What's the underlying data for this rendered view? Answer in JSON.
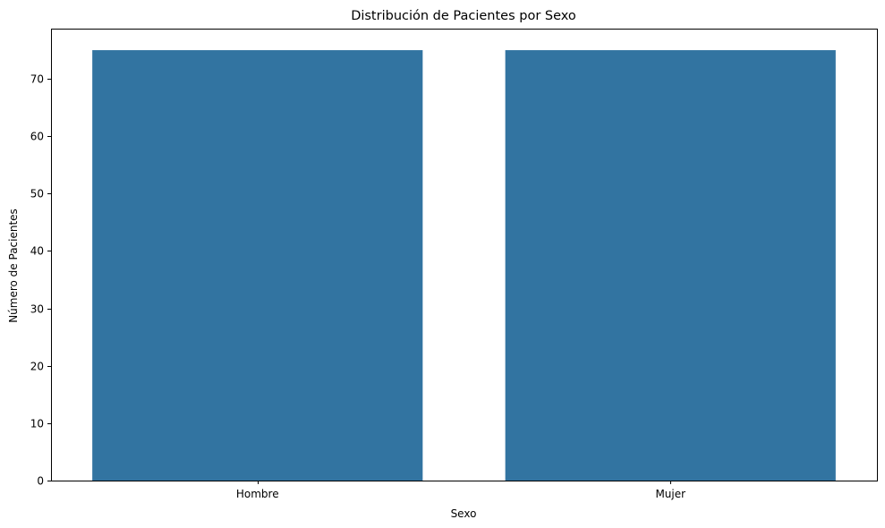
{
  "chart_data": {
    "type": "bar",
    "title": "Distribución de Pacientes por Sexo",
    "xlabel": "Sexo",
    "ylabel": "Número de Pacientes",
    "categories": [
      "Hombre",
      "Mujer"
    ],
    "values": [
      75,
      75
    ],
    "ylim": [
      0,
      78.75
    ],
    "yticks": [
      0,
      10,
      20,
      30,
      40,
      50,
      60,
      70
    ],
    "grid": false,
    "bar_color": "#3274a1"
  }
}
